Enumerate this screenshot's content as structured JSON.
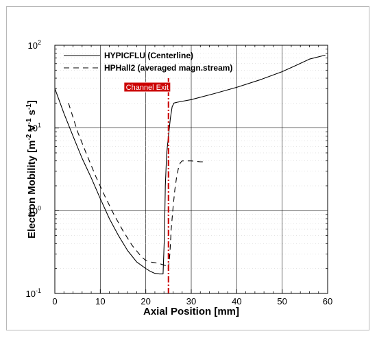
{
  "chart_data": {
    "type": "line",
    "title": "",
    "xlabel": "Axial Position [mm]",
    "ylabel_base": "Electron Mobility [m",
    "ylabel_exp1": "-2",
    "ylabel_mid1": " V",
    "ylabel_exp2": "-1",
    "ylabel_mid2": " s",
    "ylabel_exp3": "-1",
    "ylabel_end": "]",
    "x_scale": "linear",
    "y_scale": "log",
    "xlim": [
      0,
      60
    ],
    "ylim": [
      0.1,
      100
    ],
    "x_ticks": [
      "0",
      "10",
      "20",
      "30",
      "40",
      "50",
      "60"
    ],
    "y_ticks": [
      {
        "value": 0.1,
        "base": "10",
        "exp": "-1"
      },
      {
        "value": 1,
        "base": "10",
        "exp": "0"
      },
      {
        "value": 10,
        "base": "10",
        "exp": "1"
      },
      {
        "value": 100,
        "base": "10",
        "exp": "2"
      }
    ],
    "grid": true,
    "legend_position": "top-left",
    "series": [
      {
        "name": "HYPICFLU (Centerline)",
        "style": "solid",
        "color": "#000000",
        "x": [
          0,
          2,
          4,
          6,
          8,
          10,
          12,
          14,
          16,
          18,
          20,
          21,
          22,
          23,
          23.8,
          24.1,
          24.3,
          24.6,
          25,
          25.4,
          25.8,
          26.2,
          27,
          30,
          35,
          40,
          45,
          50,
          53,
          56,
          59.5
        ],
        "y": [
          30,
          15,
          8,
          4.3,
          2.5,
          1.4,
          0.8,
          0.5,
          0.33,
          0.24,
          0.2,
          0.185,
          0.175,
          0.172,
          0.172,
          0.5,
          2,
          5,
          8,
          13,
          18,
          20,
          20.5,
          22,
          26,
          31,
          38,
          48,
          57,
          68,
          76
        ]
      },
      {
        "name": "HPHall2 (averaged magn.stream)",
        "style": "dashed",
        "color": "#000000",
        "x": [
          3,
          5,
          7,
          9,
          11,
          13,
          15,
          17,
          19,
          20,
          21,
          22,
          23,
          24,
          24.7,
          25,
          25.3,
          25.6,
          26,
          26.4,
          26.8,
          27.2,
          27.6,
          28,
          29,
          30,
          31,
          32,
          33
        ],
        "y": [
          20,
          9,
          4.8,
          2.6,
          1.5,
          0.9,
          0.57,
          0.38,
          0.28,
          0.25,
          0.24,
          0.235,
          0.23,
          0.22,
          0.215,
          0.2,
          0.3,
          0.6,
          1.1,
          1.8,
          2.6,
          3.3,
          3.8,
          4.0,
          4.0,
          4.0,
          3.95,
          3.9,
          3.9
        ]
      }
    ],
    "annotations": [
      {
        "text": "Channel Exit",
        "x": 25,
        "line_color": "#cc0000",
        "style": "dash-dot"
      }
    ]
  }
}
